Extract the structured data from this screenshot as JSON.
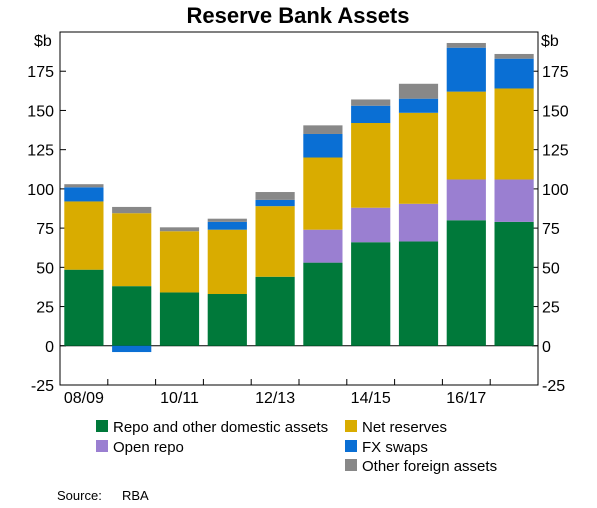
{
  "chart_data": {
    "type": "bar",
    "stacked": true,
    "title": "Reserve Bank Assets",
    "unit_left": "$b",
    "unit_right": "$b",
    "ylim": [
      -25,
      200
    ],
    "yticks": [
      -25,
      0,
      25,
      50,
      75,
      100,
      125,
      150,
      175
    ],
    "xtick_labels": [
      {
        "label": "08/09",
        "index": 0
      },
      {
        "label": "10/11",
        "index": 2
      },
      {
        "label": "12/13",
        "index": 4
      },
      {
        "label": "14/15",
        "index": 6
      },
      {
        "label": "16/17",
        "index": 8
      }
    ],
    "n_bars": 10,
    "series": [
      {
        "name": "Repo and other domestic assets",
        "color": "#00793a",
        "values": [
          48.5,
          38,
          34,
          33,
          44,
          53,
          66,
          66.5,
          80,
          79
        ]
      },
      {
        "name": "Open repo",
        "color": "#9a7fd1",
        "values": [
          0,
          0,
          0,
          0,
          0,
          21,
          22,
          24,
          26,
          27
        ]
      },
      {
        "name": "Net reserves",
        "color": "#d9ac00",
        "values": [
          43.5,
          46.5,
          39,
          41,
          45,
          46,
          54,
          58,
          56,
          58
        ]
      },
      {
        "name": "FX swaps",
        "color": "#0a6fd4",
        "values": [
          9,
          -4,
          0,
          5,
          4,
          15,
          11,
          9,
          28,
          19
        ]
      },
      {
        "name": "Other foreign assets",
        "color": "#888888",
        "values": [
          2,
          4,
          2.5,
          2,
          5,
          5.5,
          4,
          9.5,
          3,
          3
        ]
      }
    ],
    "legend": {
      "placement": "bottom",
      "order": [
        "Repo and other domestic assets",
        "Net reserves",
        "Open repo",
        "FX swaps",
        "Other foreign assets"
      ]
    },
    "grid": false
  },
  "source": {
    "label": "Source:",
    "value": "RBA"
  }
}
